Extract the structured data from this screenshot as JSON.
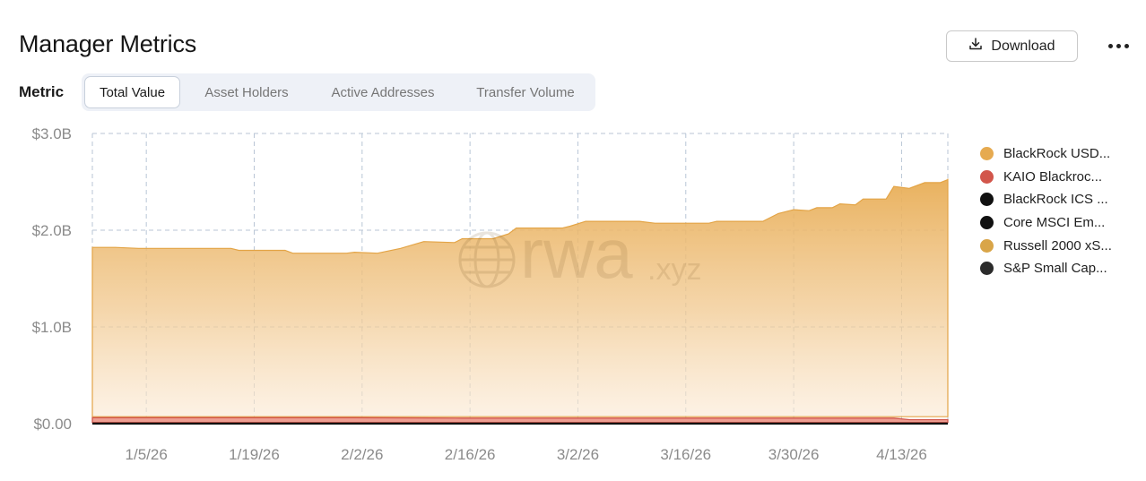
{
  "header": {
    "title": "Manager Metrics",
    "download_label": "Download",
    "more_icon": "more-horizontal-icon",
    "download_icon": "download-icon"
  },
  "metric_selector": {
    "label": "Metric",
    "tabs": [
      "Total Value",
      "Asset Holders",
      "Active Addresses",
      "Transfer Volume"
    ],
    "active": "Total Value"
  },
  "watermark": {
    "main": "rwa",
    "suffix": ".xyz"
  },
  "colors": {
    "blackrock_usd": "#e6aa50",
    "kaio": "#d2564b",
    "blackrock_ics": "#111111",
    "core_msci": "#111111",
    "russell": "#d9a548",
    "sp_small": "#2b2b2b"
  },
  "legend": [
    {
      "label": "BlackRock USD...",
      "color": "#e6aa50"
    },
    {
      "label": "KAIO Blackroc...",
      "color": "#d2564b"
    },
    {
      "label": "BlackRock ICS ...",
      "color": "#111111"
    },
    {
      "label": "Core MSCI Em...",
      "color": "#111111"
    },
    {
      "label": "Russell 2000 xS...",
      "color": "#d9a548"
    },
    {
      "label": "S&P Small Cap...",
      "color": "#2b2b2b"
    }
  ],
  "chart_data": {
    "type": "area",
    "stacked": true,
    "x_start": "2025-12-29",
    "x_end": "2026-04-19",
    "x_ticks": [
      "1/5/26",
      "1/19/26",
      "2/2/26",
      "2/16/26",
      "3/2/26",
      "3/16/26",
      "3/30/26",
      "4/13/26"
    ],
    "y_ticks": [
      "$0.00",
      "$1.0B",
      "$2.0B",
      "$3.0B"
    ],
    "ylim": [
      0,
      3.0
    ],
    "y_unit": "$B",
    "grid": true,
    "legend_position": "right",
    "series": [
      {
        "name": "BlackRock USD...",
        "values": [
          [
            "2025-12-29",
            1.75
          ],
          [
            "2026-01-01",
            1.75
          ],
          [
            "2026-01-04",
            1.74
          ],
          [
            "2026-01-11",
            1.74
          ],
          [
            "2026-01-16",
            1.74
          ],
          [
            "2026-01-17",
            1.72
          ],
          [
            "2026-01-23",
            1.72
          ],
          [
            "2026-01-24",
            1.69
          ],
          [
            "2026-01-31",
            1.69
          ],
          [
            "2026-02-01",
            1.7
          ],
          [
            "2026-02-04",
            1.69
          ],
          [
            "2026-02-07",
            1.74
          ],
          [
            "2026-02-10",
            1.81
          ],
          [
            "2026-02-14",
            1.8
          ],
          [
            "2026-02-15",
            1.84
          ],
          [
            "2026-02-19",
            1.84
          ],
          [
            "2026-02-21",
            1.89
          ],
          [
            "2026-02-22",
            1.95
          ],
          [
            "2026-02-28",
            1.95
          ],
          [
            "2026-02-29",
            1.97
          ],
          [
            "2026-03-03",
            2.02
          ],
          [
            "2026-03-10",
            2.02
          ],
          [
            "2026-03-12",
            2.0
          ],
          [
            "2026-03-19",
            2.0
          ],
          [
            "2026-03-20",
            2.02
          ],
          [
            "2026-03-26",
            2.02
          ],
          [
            "2026-03-28",
            2.1
          ],
          [
            "2026-03-30",
            2.14
          ],
          [
            "2026-04-01",
            2.13
          ],
          [
            "2026-04-02",
            2.16
          ],
          [
            "2026-04-04",
            2.16
          ],
          [
            "2026-04-05",
            2.2
          ],
          [
            "2026-04-07",
            2.19
          ],
          [
            "2026-04-08",
            2.25
          ],
          [
            "2026-04-11",
            2.25
          ],
          [
            "2026-04-12",
            2.38
          ],
          [
            "2026-04-14",
            2.36
          ],
          [
            "2026-04-16",
            2.42
          ],
          [
            "2026-04-18",
            2.42
          ],
          [
            "2026-04-20",
            2.45
          ],
          [
            "2026-04-22",
            2.46
          ],
          [
            "2026-04-29",
            2.46
          ]
        ]
      },
      {
        "name": "KAIO Blackroc...",
        "values": [
          [
            "2025-12-29",
            0.05
          ],
          [
            "2026-02-01",
            0.05
          ],
          [
            "2026-02-15",
            0.045
          ],
          [
            "2026-04-12",
            0.045
          ],
          [
            "2026-04-14",
            0.03
          ],
          [
            "2026-04-29",
            0.03
          ]
        ]
      },
      {
        "name": "BlackRock ICS ...",
        "values": [
          [
            "2025-12-29",
            0.01
          ],
          [
            "2026-04-29",
            0.01
          ]
        ]
      },
      {
        "name": "Core MSCI Em...",
        "values": [
          [
            "2025-12-29",
            0.005
          ],
          [
            "2026-04-29",
            0.005
          ]
        ]
      },
      {
        "name": "Russell 2000 xS...",
        "values": [
          [
            "2025-12-29",
            0.004
          ],
          [
            "2026-04-29",
            0.004
          ]
        ]
      },
      {
        "name": "S&P Small Cap...",
        "values": [
          [
            "2025-12-29",
            0.003
          ],
          [
            "2026-04-29",
            0.003
          ]
        ]
      }
    ]
  }
}
